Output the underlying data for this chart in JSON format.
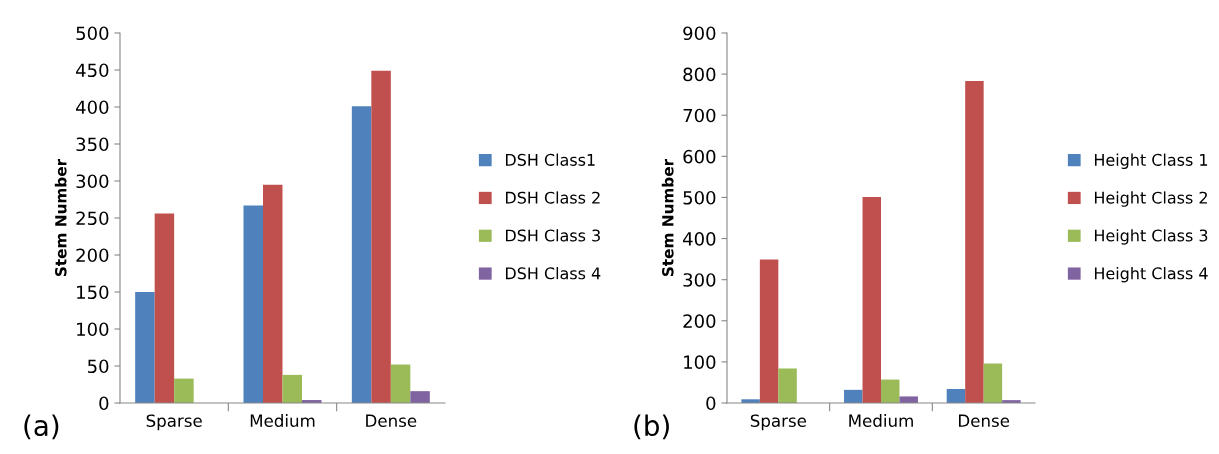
{
  "chart_data": [
    {
      "type": "bar",
      "ylabel": "Stem Number",
      "categories": [
        "Sparse",
        "Medium",
        "Dense"
      ],
      "ylim": [
        0,
        500
      ],
      "yticks": [
        0,
        50,
        100,
        150,
        200,
        250,
        300,
        350,
        400,
        450,
        500
      ],
      "grid": false,
      "legend": "right",
      "annotations": [
        "(a)"
      ],
      "series": [
        {
          "name": "DSH Class1",
          "color": "#4f81bd",
          "values": [
            150,
            267,
            401
          ]
        },
        {
          "name": "DSH Class 2",
          "color": "#c0504d",
          "values": [
            256,
            295,
            449
          ]
        },
        {
          "name": "DSH Class 3",
          "color": "#9bbb59",
          "values": [
            33,
            38,
            52
          ]
        },
        {
          "name": "DSH Class 4",
          "color": "#8064a2",
          "values": [
            0,
            4,
            16
          ]
        }
      ]
    },
    {
      "type": "bar",
      "ylabel": "Stem Number",
      "categories": [
        "Sparse",
        "Medium",
        "Dense"
      ],
      "ylim": [
        0,
        900
      ],
      "yticks": [
        0,
        100,
        200,
        300,
        400,
        500,
        600,
        700,
        800,
        900
      ],
      "grid": false,
      "legend": "right",
      "annotations": [
        "(b)"
      ],
      "series": [
        {
          "name": "Height Class 1",
          "color": "#4f81bd",
          "values": [
            9,
            32,
            34
          ]
        },
        {
          "name": "Height Class 2",
          "color": "#c0504d",
          "values": [
            349,
            501,
            783
          ]
        },
        {
          "name": "Height Class 3",
          "color": "#9bbb59",
          "values": [
            84,
            57,
            96
          ]
        },
        {
          "name": "Height Class 4",
          "color": "#8064a2",
          "values": [
            0,
            16,
            7
          ]
        }
      ]
    }
  ]
}
